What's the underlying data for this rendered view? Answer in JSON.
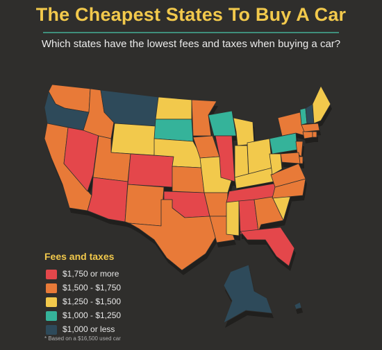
{
  "header": {
    "title": "The Cheapest States To Buy A Car",
    "subtitle": "Which states have the lowest fees and taxes when buying a car?"
  },
  "colors": {
    "background": "#2f2e2c",
    "title": "#f2c94c",
    "rule": "#3f8f7c",
    "tier_1750_plus": "#e4474b",
    "tier_1500_1750": "#e87a38",
    "tier_1250_1500": "#f2c94c",
    "tier_1000_1250": "#35b39a",
    "tier_under_1000": "#2e4a5a"
  },
  "legend": {
    "title": "Fees and taxes",
    "items": [
      {
        "label": "$1,750 or more",
        "tier": "t5"
      },
      {
        "label": "$1,500 - $1,750",
        "tier": "t4"
      },
      {
        "label": "$1,250 - $1,500",
        "tier": "t3"
      },
      {
        "label": "$1,000 - $1,250",
        "tier": "t2"
      },
      {
        "label": "$1,000 or less",
        "tier": "t1"
      }
    ]
  },
  "footnote": "* Based on a $16,500 used car",
  "states": {
    "WA": "t4",
    "OR": "t1",
    "CA": "t4",
    "NV": "t5",
    "ID": "t4",
    "MT": "t1",
    "WY": "t3",
    "UT": "t4",
    "AZ": "t5",
    "CO": "t5",
    "NM": "t4",
    "ND": "t3",
    "SD": "t2",
    "NE": "t3",
    "KS": "t4",
    "OK": "t5",
    "TX": "t4",
    "MN": "t4",
    "IA": "t4",
    "MO": "t3",
    "AR": "t4",
    "LA": "t4",
    "WI": "t2",
    "IL": "t5",
    "MI": "t3",
    "IN": "t3",
    "OH": "t3",
    "KY": "t3",
    "TN": "t5",
    "MS": "t3",
    "AL": "t5",
    "GA": "t4",
    "FL": "t5",
    "SC": "t3",
    "NC": "t4",
    "VA": "t4",
    "WV": "t3",
    "PA": "t2",
    "NY": "t4",
    "VT": "t2",
    "NH": "t1",
    "ME": "t3",
    "MA": "t4",
    "CT": "t4",
    "NJ": "t4",
    "MD": "t4",
    "DE": "t4",
    "RI": "t4",
    "AK": "t1",
    "HI": "t1"
  }
}
